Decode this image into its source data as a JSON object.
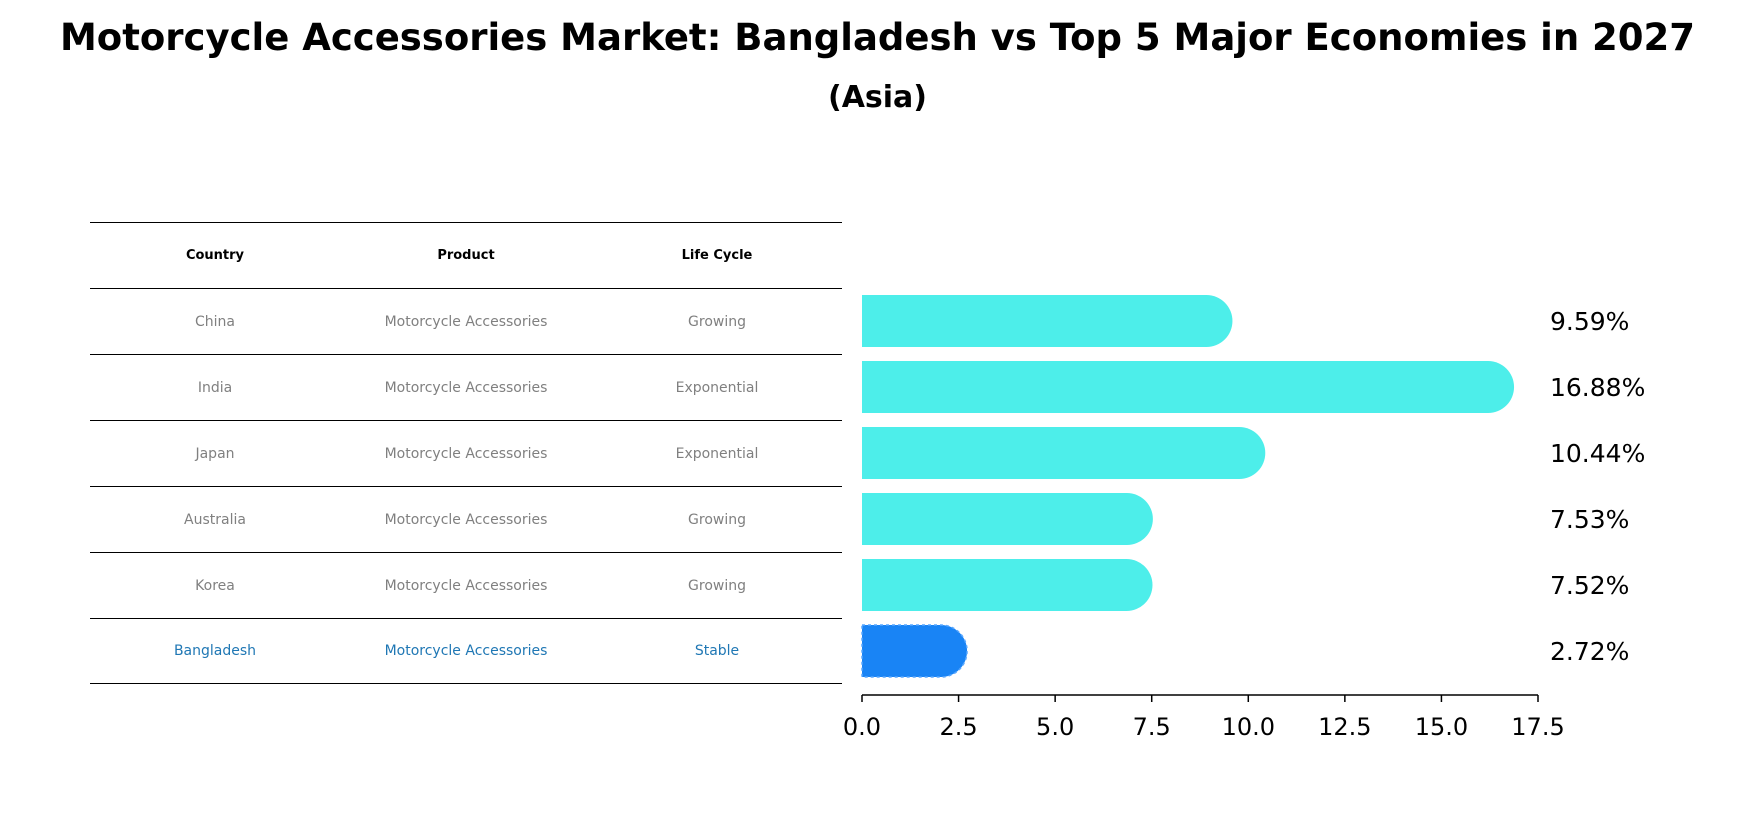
{
  "chart_data": {
    "type": "bar",
    "orientation": "horizontal",
    "title": "Motorcycle Accessories Market: Bangladesh vs Top 5 Major Economies in 2027",
    "subtitle": "(Asia)",
    "categories": [
      "China",
      "India",
      "Japan",
      "Australia",
      "Korea",
      "Bangladesh"
    ],
    "values": [
      9.59,
      16.88,
      10.44,
      7.53,
      7.52,
      2.72
    ],
    "value_labels": [
      "9.59%",
      "16.88%",
      "10.44%",
      "7.53%",
      "7.52%",
      "2.72%"
    ],
    "xlim": [
      0,
      17.5
    ],
    "xticks": [
      0.0,
      2.5,
      5.0,
      7.5,
      10.0,
      12.5,
      15.0,
      17.5
    ],
    "xtick_labels": [
      "0.0",
      "2.5",
      "5.0",
      "7.5",
      "10.0",
      "12.5",
      "15.0",
      "17.5"
    ],
    "highlight_category": "Bangladesh",
    "colors": {
      "bar": "#4deeea",
      "highlight": "#1984f5",
      "highlight_text": "#1f77b4",
      "muted_text": "#808080"
    }
  },
  "table": {
    "headers": [
      "Country",
      "Product",
      "Life Cycle"
    ],
    "rows": [
      [
        "China",
        "Motorcycle Accessories",
        "Growing"
      ],
      [
        "India",
        "Motorcycle Accessories",
        "Exponential"
      ],
      [
        "Japan",
        "Motorcycle Accessories",
        "Exponential"
      ],
      [
        "Australia",
        "Motorcycle Accessories",
        "Growing"
      ],
      [
        "Korea",
        "Motorcycle Accessories",
        "Growing"
      ],
      [
        "Bangladesh",
        "Motorcycle Accessories",
        "Stable"
      ]
    ]
  }
}
